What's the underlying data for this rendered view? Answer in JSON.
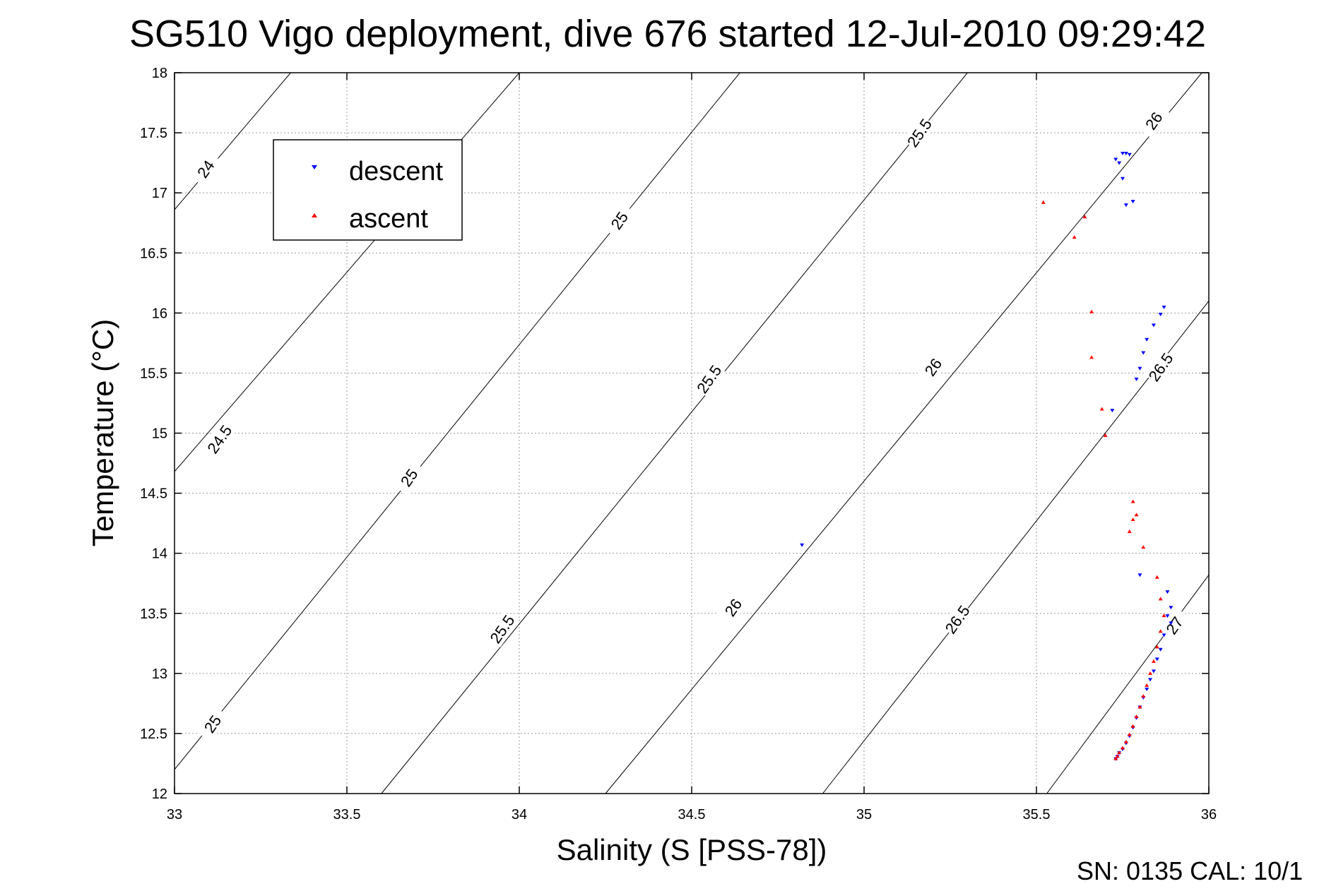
{
  "title": "SG510 Vigo deployment, dive 676 started 12-Jul-2010 09:29:42",
  "footer": "SN: 0135  CAL: 10/1",
  "chart_data": {
    "type": "scatter",
    "xlabel": "Salinity (S [PSS-78])",
    "ylabel": "Temperature (°C)",
    "xlim": [
      33,
      36
    ],
    "ylim": [
      12,
      18
    ],
    "xticks": [
      "33",
      "33.5",
      "34",
      "34.5",
      "35",
      "35.5",
      "36"
    ],
    "yticks": [
      "12",
      "12.5",
      "13",
      "13.5",
      "14",
      "14.5",
      "15",
      "15.5",
      "16",
      "16.5",
      "17",
      "17.5",
      "18"
    ],
    "grid": true,
    "legend_position": "top-left",
    "colors": {
      "descent": "#0000ff",
      "ascent": "#ff0000",
      "contour": "#000000"
    },
    "density_contours": [
      {
        "label": "24",
        "x": [
          33,
          33.337
        ],
        "y": [
          16.86,
          18.0
        ]
      },
      {
        "label": "24.5",
        "x": [
          33,
          34.0
        ],
        "y": [
          14.68,
          18.0
        ]
      },
      {
        "label": "25",
        "x": [
          33,
          34.64
        ],
        "y": [
          12.2,
          18.0
        ]
      },
      {
        "label": "25.5",
        "x": [
          33.6,
          35.3
        ],
        "y": [
          12.0,
          18.0
        ]
      },
      {
        "label": "26",
        "x": [
          34.25,
          35.98
        ],
        "y": [
          12.0,
          18.0
        ]
      },
      {
        "label": "26.5",
        "x": [
          34.88,
          36.0
        ],
        "y": [
          12.0,
          16.1
        ]
      },
      {
        "label": "27",
        "x": [
          35.53,
          36.0
        ],
        "y": [
          12.0,
          13.82
        ]
      }
    ],
    "contour_labels": [
      {
        "text": "24",
        "x": 33.09,
        "y": 17.2
      },
      {
        "text": "24.5",
        "x": 33.13,
        "y": 14.95
      },
      {
        "text": "25",
        "x": 33.11,
        "y": 12.58
      },
      {
        "text": "25",
        "x": 33.68,
        "y": 14.63
      },
      {
        "text": "25",
        "x": 34.29,
        "y": 16.77
      },
      {
        "text": "25.5",
        "x": 33.95,
        "y": 13.37
      },
      {
        "text": "25.5",
        "x": 34.55,
        "y": 15.45
      },
      {
        "text": "25.5",
        "x": 35.16,
        "y": 17.5
      },
      {
        "text": "26",
        "x": 34.62,
        "y": 13.55
      },
      {
        "text": "26",
        "x": 35.2,
        "y": 15.55
      },
      {
        "text": "26",
        "x": 35.84,
        "y": 17.6
      },
      {
        "text": "26.5",
        "x": 35.27,
        "y": 13.45
      },
      {
        "text": "26.5",
        "x": 35.86,
        "y": 15.55
      },
      {
        "text": "27",
        "x": 35.9,
        "y": 13.4
      }
    ],
    "series": [
      {
        "name": "descent",
        "marker": "triangle-down",
        "x": [
          35.73,
          35.74,
          35.75,
          35.75,
          35.76,
          35.77,
          35.76,
          35.78,
          35.87,
          35.86,
          35.84,
          35.82,
          35.81,
          35.8,
          35.79,
          35.72,
          34.82,
          35.8,
          35.88,
          35.89,
          35.88,
          35.89,
          35.87,
          35.86,
          35.85,
          35.84,
          35.83,
          35.82,
          35.81,
          35.8,
          35.79,
          35.78,
          35.77,
          35.76,
          35.75,
          35.74,
          35.735,
          35.73
        ],
        "y": [
          17.28,
          17.25,
          17.33,
          17.12,
          17.33,
          17.32,
          16.9,
          16.93,
          16.05,
          15.99,
          15.9,
          15.78,
          15.67,
          15.54,
          15.45,
          15.19,
          14.07,
          13.82,
          13.68,
          13.55,
          13.48,
          13.42,
          13.32,
          13.2,
          13.12,
          13.02,
          12.95,
          12.87,
          12.8,
          12.72,
          12.63,
          12.55,
          12.48,
          12.42,
          12.37,
          12.34,
          12.31,
          12.29
        ]
      },
      {
        "name": "ascent",
        "marker": "triangle-up",
        "x": [
          35.52,
          35.64,
          35.61,
          35.66,
          35.66,
          35.69,
          35.7,
          35.78,
          35.79,
          35.78,
          35.77,
          35.81,
          35.85,
          35.86,
          35.87,
          35.86,
          35.85,
          35.84,
          35.83,
          35.82,
          35.81,
          35.8,
          35.79,
          35.78,
          35.77,
          35.76,
          35.75,
          35.74,
          35.735,
          35.73
        ],
        "y": [
          16.92,
          16.8,
          16.63,
          16.01,
          15.63,
          15.2,
          14.98,
          14.43,
          14.32,
          14.28,
          14.18,
          14.05,
          13.8,
          13.62,
          13.48,
          13.35,
          13.22,
          13.1,
          13.0,
          12.9,
          12.81,
          12.72,
          12.64,
          12.56,
          12.49,
          12.43,
          12.38,
          12.34,
          12.31,
          12.29
        ]
      }
    ]
  }
}
